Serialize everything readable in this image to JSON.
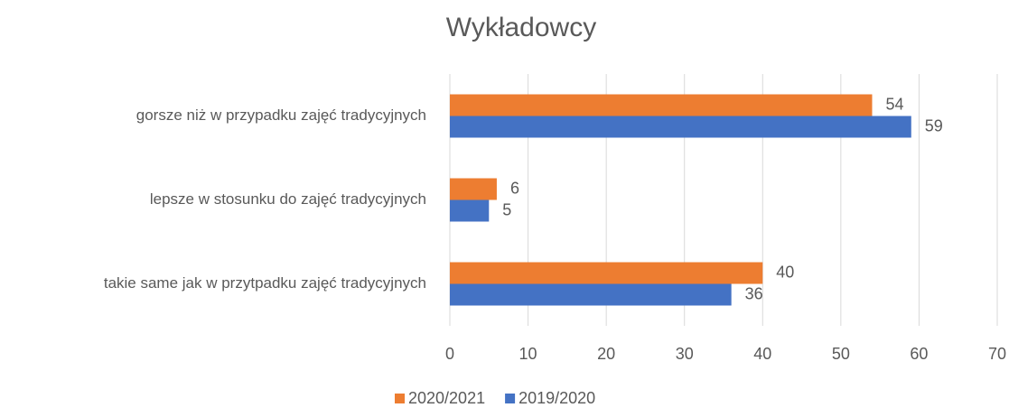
{
  "chart_data": {
    "type": "hbar",
    "title": "Wykładowcy",
    "categories": [
      "gorsze niż w przypadku zajęć tradycyjnych",
      "lepsze w stosunku do zajęć tradycyjnych",
      "takie same jak w przytpadku zajęć tradycyjnych"
    ],
    "series": [
      {
        "name": "2020/2021",
        "color": "#ed7d31",
        "values": [
          54,
          6,
          40
        ]
      },
      {
        "name": "2019/2020",
        "color": "#4472c4",
        "values": [
          59,
          5,
          36
        ]
      }
    ],
    "xlim": [
      0,
      70
    ],
    "xticks": [
      0,
      10,
      20,
      30,
      40,
      50,
      60,
      70
    ],
    "grid": true,
    "legend": "bottom"
  }
}
